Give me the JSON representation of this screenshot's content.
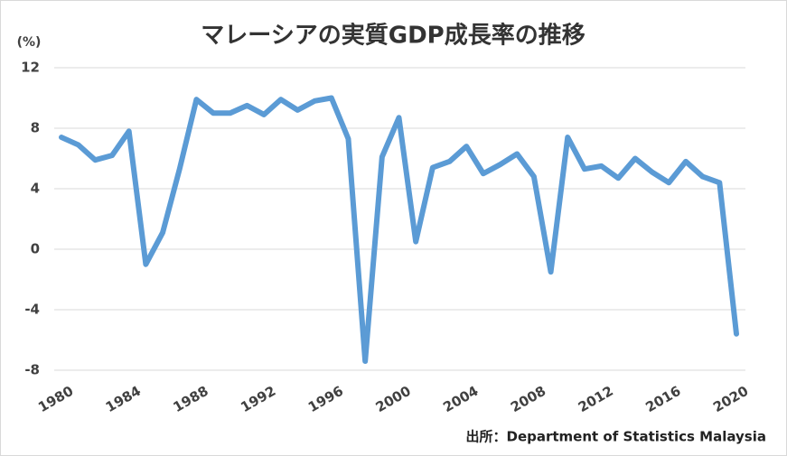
{
  "chart_data": {
    "type": "line",
    "title": "マレーシアの実質GDP成長率の推移",
    "y_label": "(%)",
    "source": "出所：Department of Statistics Malaysia",
    "x": [
      1980,
      1981,
      1982,
      1983,
      1984,
      1985,
      1986,
      1987,
      1988,
      1989,
      1990,
      1991,
      1992,
      1993,
      1994,
      1995,
      1996,
      1997,
      1998,
      1999,
      2000,
      2001,
      2002,
      2003,
      2004,
      2005,
      2006,
      2007,
      2008,
      2009,
      2010,
      2011,
      2012,
      2013,
      2014,
      2015,
      2016,
      2017,
      2018,
      2019,
      2020
    ],
    "series": [
      {
        "name": "実質GDP成長率",
        "color": "#5b9bd5",
        "values": [
          7.4,
          6.9,
          5.9,
          6.2,
          7.8,
          -1.0,
          1.1,
          5.3,
          9.9,
          9.0,
          9.0,
          9.5,
          8.9,
          9.9,
          9.2,
          9.8,
          10.0,
          7.3,
          -7.4,
          6.1,
          8.7,
          0.5,
          5.4,
          5.8,
          6.8,
          5.0,
          5.6,
          6.3,
          4.8,
          -1.5,
          7.4,
          5.3,
          5.5,
          4.7,
          6.0,
          5.1,
          4.4,
          5.8,
          4.8,
          4.4,
          -5.6
        ]
      }
    ],
    "xlim": [
      1980,
      2020
    ],
    "xticks": [
      1980,
      1984,
      1988,
      1992,
      1996,
      2000,
      2004,
      2008,
      2012,
      2016,
      2020
    ],
    "ylim": [
      -8,
      12
    ],
    "yticks": [
      -8,
      -4,
      0,
      4,
      8,
      12
    ],
    "grid": true
  }
}
